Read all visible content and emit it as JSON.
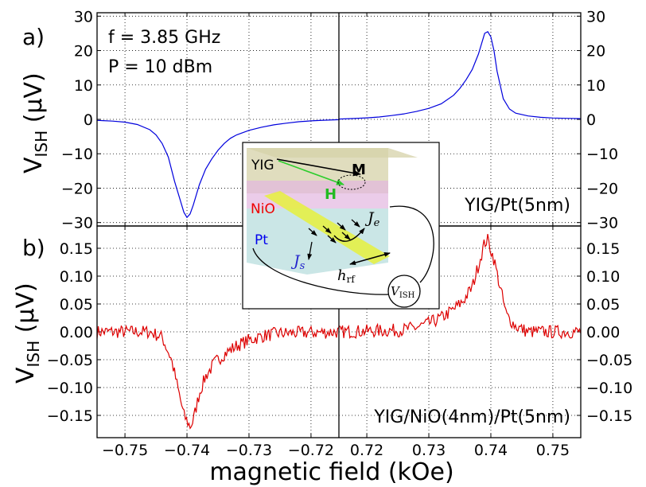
{
  "chart_data": [
    {
      "panel_label": "a)",
      "type": "line",
      "ylabel_main": "V",
      "ylabel_sub": "ISH",
      "ylabel_unit": " (μV)",
      "annotation_lines": [
        "f = 3.85 GHz",
        "P = 10 dBm"
      ],
      "sample_label": "YIG/Pt(5nm)",
      "ylim": [
        -31,
        31
      ],
      "yticks": [
        -30,
        -20,
        -10,
        0,
        10,
        20,
        30
      ],
      "ytick_labels": [
        "−30",
        "−20",
        "−10",
        "0",
        "10",
        "20",
        "30"
      ],
      "series": [
        {
          "name": "YIG/Pt(5nm)",
          "color": "#0000dd",
          "left": {
            "x": [
              -0.7545,
              -0.752,
              -0.75,
              -0.748,
              -0.746,
              -0.745,
              -0.744,
              -0.743,
              -0.742,
              -0.741,
              -0.7405,
              -0.74,
              -0.7395,
              -0.739,
              -0.7385,
              -0.738,
              -0.737,
              -0.736,
              -0.735,
              -0.734,
              -0.733,
              -0.732,
              -0.73,
              -0.728,
              -0.726,
              -0.724,
              -0.722,
              -0.72,
              -0.718,
              -0.7155
            ],
            "y": [
              -0.3,
              -0.5,
              -0.8,
              -1.5,
              -3,
              -4.5,
              -7,
              -11,
              -18,
              -24,
              -27,
              -28.5,
              -27.5,
              -25,
              -22,
              -19,
              -14.5,
              -11.5,
              -9,
              -7,
              -5.5,
              -4.5,
              -3.2,
              -2.3,
              -1.6,
              -1.1,
              -0.7,
              -0.45,
              -0.25,
              -0.1
            ]
          },
          "right": {
            "x": [
              0.7155,
              0.718,
              0.72,
              0.722,
              0.724,
              0.726,
              0.728,
              0.73,
              0.732,
              0.734,
              0.735,
              0.736,
              0.737,
              0.738,
              0.7385,
              0.739,
              0.7395,
              0.74,
              0.7405,
              0.741,
              0.742,
              0.743,
              0.744,
              0.746,
              0.748,
              0.75,
              0.752,
              0.7545
            ],
            "y": [
              0.1,
              0.25,
              0.45,
              0.7,
              1.1,
              1.6,
              2.3,
              3.2,
              4.5,
              7,
              9,
              11.5,
              14.5,
              19,
              22,
              25,
              25.5,
              24,
              20,
              14,
              6,
              3,
              1.8,
              1.0,
              0.6,
              0.4,
              0.3,
              0.2
            ]
          }
        }
      ]
    },
    {
      "panel_label": "b)",
      "type": "line",
      "ylabel_main": "V",
      "ylabel_sub": "ISH",
      "ylabel_unit": " (μV)",
      "sample_label": "YIG/NiO(4nm)/Pt(5nm)",
      "xlabel": "magnetic field (kOe)",
      "ylim": [
        -0.19,
        0.19
      ],
      "yticks": [
        -0.15,
        -0.1,
        -0.05,
        0,
        0.05,
        0.1,
        0.15
      ],
      "ytick_labels": [
        "−0.15",
        "−0.10",
        "−0.05",
        "0.00",
        "0.05",
        "0.10",
        "0.15"
      ],
      "xticks_left": [
        -0.75,
        -0.74,
        -0.73,
        -0.72
      ],
      "xtick_labels_left": [
        "−0.75",
        "−0.74",
        "−0.73",
        "−0.72"
      ],
      "xticks_right": [
        0.72,
        0.73,
        0.74,
        0.75
      ],
      "xtick_labels_right": [
        "0.72",
        "0.73",
        "0.74",
        "0.75"
      ],
      "xlim_left": [
        -0.7545,
        -0.7155
      ],
      "xlim_right": [
        0.7155,
        0.7545
      ],
      "series": [
        {
          "name": "YIG/NiO(4nm)/Pt(5nm)",
          "color": "#dd0000",
          "noise_amplitude": 0.012,
          "left": {
            "x": [
              -0.7545,
              -0.746,
              -0.744,
              -0.7425,
              -0.7415,
              -0.7405,
              -0.7395,
              -0.739,
              -0.738,
              -0.737,
              -0.7355,
              -0.734,
              -0.732,
              -0.73,
              -0.728,
              -0.7255,
              -0.7155
            ],
            "y": [
              0.0,
              0.0,
              -0.01,
              -0.05,
              -0.1,
              -0.15,
              -0.17,
              -0.16,
              -0.11,
              -0.08,
              -0.055,
              -0.04,
              -0.025,
              -0.015,
              -0.008,
              -0.003,
              0.0
            ]
          },
          "right": {
            "x": [
              0.7155,
              0.7255,
              0.728,
              0.73,
              0.732,
              0.734,
              0.7355,
              0.737,
              0.738,
              0.739,
              0.7395,
              0.7405,
              0.7415,
              0.7425,
              0.744,
              0.746,
              0.7545
            ],
            "y": [
              0.0,
              0.003,
              0.008,
              0.015,
              0.025,
              0.04,
              0.055,
              0.08,
              0.12,
              0.16,
              0.165,
              0.13,
              0.08,
              0.03,
              0.01,
              0.0,
              0.0
            ]
          }
        }
      ]
    }
  ],
  "inset": {
    "labels": {
      "yig": "YIG",
      "nio": "NiO",
      "pt": "Pt",
      "m": "M",
      "h": "H",
      "js": "J",
      "js_sub": "s",
      "je": "J",
      "je_sub": "e",
      "hrf": "h",
      "hrf_sub": "rf",
      "vish": "V",
      "vish_sub": "ISH"
    },
    "colors": {
      "yig": "#d6d2a8",
      "nio": "#e3b7e0",
      "pt": "#b4dcdc",
      "strip": "#e6f03c",
      "m_arrow": "#000000",
      "h_arrow": "#2ccd2c",
      "nio_text": "#ee0000",
      "pt_text": "#0000ee",
      "h_text": "#22bb22"
    }
  }
}
